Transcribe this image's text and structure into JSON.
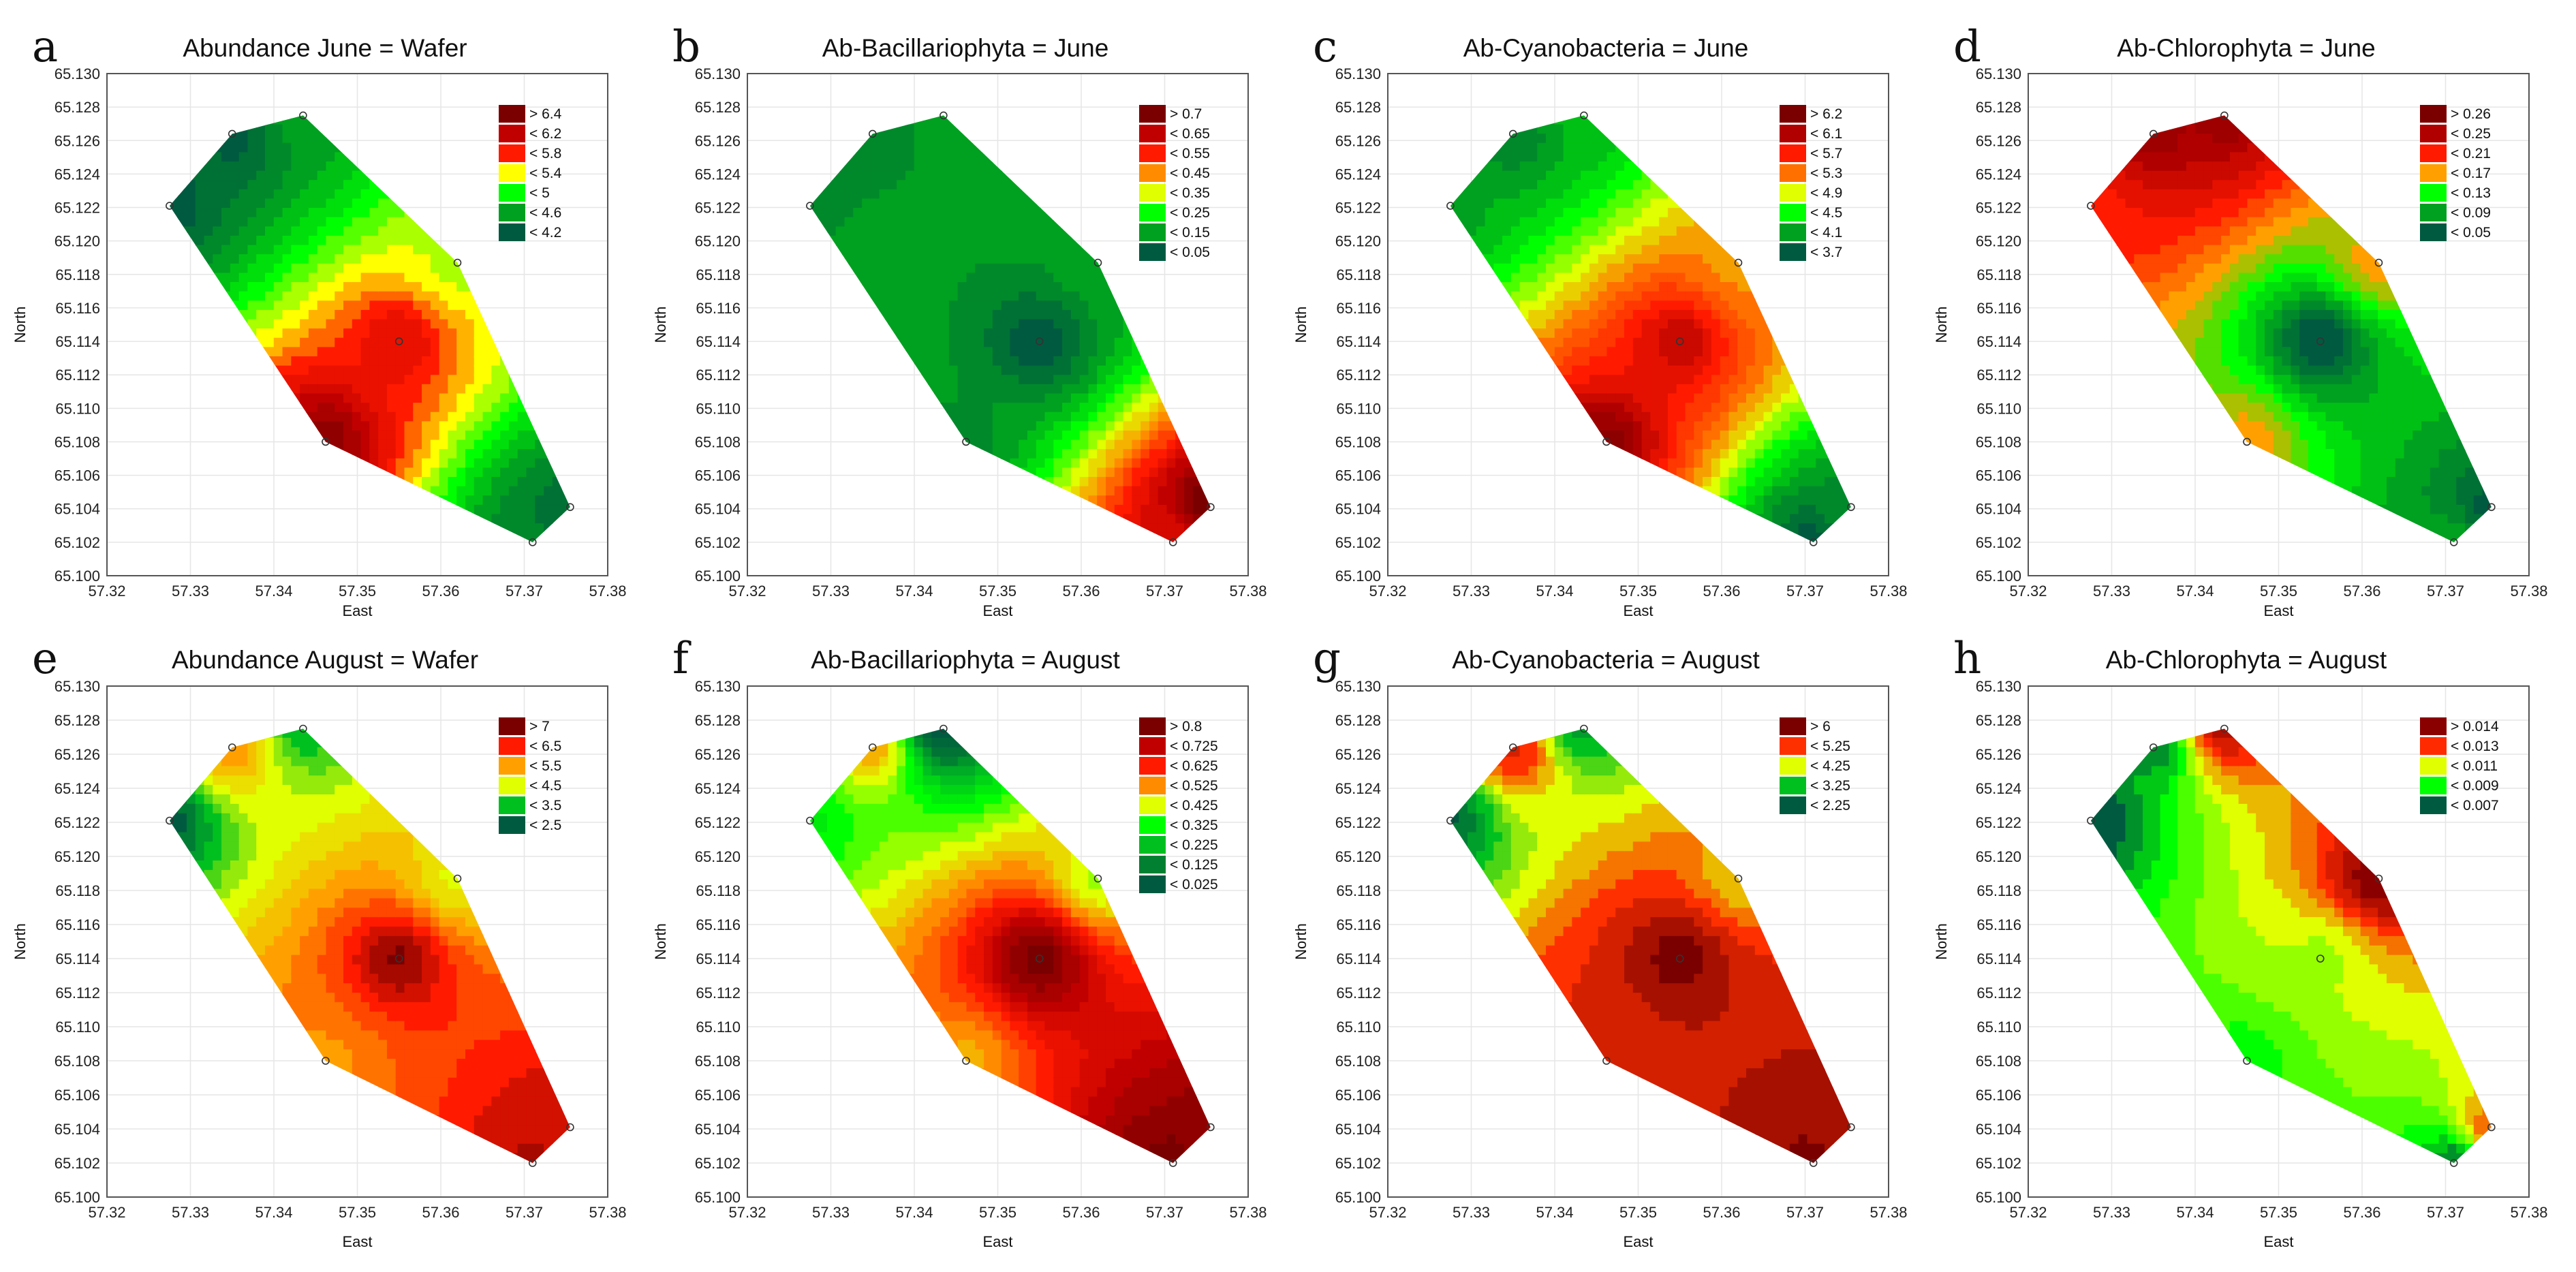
{
  "chart_data": {
    "type": "heatmap",
    "description_axes": {
      "xlabel": "East",
      "ylabel": "North"
    },
    "xlim": [
      57.32,
      57.38
    ],
    "ylim": [
      65.1,
      65.13
    ],
    "xticks": [
      "57.32",
      "57.33",
      "57.34",
      "57.35",
      "57.36",
      "57.37",
      "57.38"
    ],
    "yticks": [
      "65.100",
      "65.102",
      "65.104",
      "65.106",
      "65.108",
      "65.110",
      "65.112",
      "65.114",
      "65.116",
      "65.118",
      "65.120",
      "65.122",
      "65.124",
      "65.126",
      "65.128",
      "65.130"
    ],
    "stations": [
      {
        "east": 57.3275,
        "north": 65.1221
      },
      {
        "east": 57.335,
        "north": 65.1264
      },
      {
        "east": 57.3435,
        "north": 65.1275
      },
      {
        "east": 57.362,
        "north": 65.1187
      },
      {
        "east": 57.355,
        "north": 65.114
      },
      {
        "east": 57.3462,
        "north": 65.108
      },
      {
        "east": 57.371,
        "north": 65.102
      },
      {
        "east": 57.3755,
        "north": 65.1041
      }
    ],
    "hull_order": [
      0,
      1,
      2,
      3,
      7,
      6,
      5
    ],
    "panels": [
      {
        "letter": "a",
        "title": "Abundance June = Wafer",
        "xlabel": "East",
        "ylabel": "North",
        "legend": [
          {
            "label": "> 6.4",
            "color": "#7a0000",
            "v": 6.6
          },
          {
            "label": "< 6.2",
            "color": "#c00000",
            "v": 6.2
          },
          {
            "label": "< 5.8",
            "color": "#ff1a00",
            "v": 5.8
          },
          {
            "label": "< 5.4",
            "color": "#ffff00",
            "v": 5.4
          },
          {
            "label": "< 5",
            "color": "#00ff00",
            "v": 5.0
          },
          {
            "label": "< 4.6",
            "color": "#00a020",
            "v": 4.6
          },
          {
            "label": "< 4.2",
            "color": "#005a40",
            "v": 4.2
          }
        ],
        "values": [
          4.2,
          4.2,
          4.6,
          5.3,
          6.0,
          6.5,
          4.4,
          4.3
        ]
      },
      {
        "letter": "b",
        "title": "Ab-Bacillariophyta = June",
        "xlabel": "East",
        "ylabel": "North",
        "legend": [
          {
            "label": "> 0.7",
            "color": "#7a0000",
            "v": 0.75
          },
          {
            "label": "< 0.65",
            "color": "#c00000",
            "v": 0.65
          },
          {
            "label": "< 0.55",
            "color": "#ff1a00",
            "v": 0.55
          },
          {
            "label": "< 0.45",
            "color": "#ff8c00",
            "v": 0.45
          },
          {
            "label": "< 0.35",
            "color": "#e0ff00",
            "v": 0.35
          },
          {
            "label": "< 0.25",
            "color": "#00ff00",
            "v": 0.25
          },
          {
            "label": "< 0.15",
            "color": "#00a020",
            "v": 0.15
          },
          {
            "label": "< 0.05",
            "color": "#005a40",
            "v": 0.05
          }
        ],
        "values": [
          0.13,
          0.12,
          0.14,
          0.15,
          0.04,
          0.12,
          0.6,
          0.78
        ]
      },
      {
        "letter": "c",
        "title": "Ab-Cyanobacteria = June",
        "xlabel": "East",
        "ylabel": "North",
        "legend": [
          {
            "label": "> 6.2",
            "color": "#7a0000",
            "v": 6.4
          },
          {
            "label": "< 6.1",
            "color": "#b00000",
            "v": 6.1
          },
          {
            "label": "< 5.7",
            "color": "#ff1a00",
            "v": 5.7
          },
          {
            "label": "< 5.3",
            "color": "#ff7000",
            "v": 5.3
          },
          {
            "label": "< 4.9",
            "color": "#e0ff00",
            "v": 4.9
          },
          {
            "label": "< 4.5",
            "color": "#00ff00",
            "v": 4.5
          },
          {
            "label": "< 4.1",
            "color": "#00a020",
            "v": 4.1
          },
          {
            "label": "< 3.7",
            "color": "#005a40",
            "v": 3.7
          }
        ],
        "values": [
          4.1,
          3.9,
          4.2,
          5.2,
          6.0,
          6.3,
          3.7,
          4.0
        ]
      },
      {
        "letter": "d",
        "title": "Ab-Chlorophyta = June",
        "xlabel": "East",
        "ylabel": "North",
        "legend": [
          {
            "label": "> 0.26",
            "color": "#7a0000",
            "v": 0.27
          },
          {
            "label": "< 0.25",
            "color": "#b00000",
            "v": 0.25
          },
          {
            "label": "< 0.21",
            "color": "#ff1a00",
            "v": 0.21
          },
          {
            "label": "< 0.17",
            "color": "#ffa000",
            "v": 0.17
          },
          {
            "label": "< 0.13",
            "color": "#00ff00",
            "v": 0.13
          },
          {
            "label": "< 0.09",
            "color": "#00a020",
            "v": 0.09
          },
          {
            "label": "< 0.05",
            "color": "#005a40",
            "v": 0.05
          }
        ],
        "values": [
          0.21,
          0.26,
          0.26,
          0.17,
          0.04,
          0.17,
          0.09,
          0.05
        ]
      },
      {
        "letter": "e",
        "title": "Abundance August = Wafer",
        "xlabel": "East",
        "ylabel": "North",
        "legend": [
          {
            "label": "> 7",
            "color": "#7a0000",
            "v": 7.4
          },
          {
            "label": "< 6.5",
            "color": "#ff1a00",
            "v": 6.5
          },
          {
            "label": "< 5.5",
            "color": "#ffa000",
            "v": 5.5
          },
          {
            "label": "< 4.5",
            "color": "#e0ff00",
            "v": 4.5
          },
          {
            "label": "< 3.5",
            "color": "#00c020",
            "v": 3.5
          },
          {
            "label": "< 2.5",
            "color": "#005a40",
            "v": 2.5
          }
        ],
        "values": [
          2.5,
          5.6,
          3.4,
          4.6,
          7.3,
          5.6,
          7.0,
          6.9
        ]
      },
      {
        "letter": "f",
        "title": "Ab-Bacillariophyta = August",
        "xlabel": "East",
        "ylabel": "North",
        "legend": [
          {
            "label": "> 0.8",
            "color": "#7a0000",
            "v": 0.85
          },
          {
            "label": "< 0.725",
            "color": "#c00000",
            "v": 0.725
          },
          {
            "label": "< 0.625",
            "color": "#ff1a00",
            "v": 0.625
          },
          {
            "label": "< 0.525",
            "color": "#ff8c00",
            "v": 0.525
          },
          {
            "label": "< 0.425",
            "color": "#e0ff00",
            "v": 0.425
          },
          {
            "label": "< 0.325",
            "color": "#00ff00",
            "v": 0.325
          },
          {
            "label": "< 0.225",
            "color": "#00c020",
            "v": 0.225
          },
          {
            "label": "< 0.125",
            "color": "#008030",
            "v": 0.125
          },
          {
            "label": "< 0.025",
            "color": "#005a40",
            "v": 0.025
          }
        ],
        "values": [
          0.3,
          0.5,
          0.02,
          0.4,
          0.85,
          0.5,
          0.85,
          0.8
        ]
      },
      {
        "letter": "g",
        "title": "Ab-Cyanobacteria = August",
        "xlabel": "East",
        "ylabel": "North",
        "legend": [
          {
            "label": "> 6",
            "color": "#7a0000",
            "v": 6.6
          },
          {
            "label": "< 5.25",
            "color": "#ff3000",
            "v": 5.25
          },
          {
            "label": "< 4.25",
            "color": "#e0ff00",
            "v": 4.25
          },
          {
            "label": "< 3.25",
            "color": "#00c020",
            "v": 3.25
          },
          {
            "label": "< 2.25",
            "color": "#005a40",
            "v": 2.25
          }
        ],
        "values": [
          2.4,
          5.6,
          3.0,
          4.5,
          6.6,
          5.6,
          6.5,
          6.1
        ]
      },
      {
        "letter": "h",
        "title": "Ab-Chlorophyta = August",
        "xlabel": "East",
        "ylabel": "North",
        "legend": [
          {
            "label": "> 0.014",
            "color": "#8a0000",
            "v": 0.015
          },
          {
            "label": "< 0.013",
            "color": "#ff2a00",
            "v": 0.013
          },
          {
            "label": "< 0.011",
            "color": "#e0ff00",
            "v": 0.011
          },
          {
            "label": "< 0.009",
            "color": "#00ff00",
            "v": 0.009
          },
          {
            "label": "< 0.007",
            "color": "#005a40",
            "v": 0.007
          }
        ],
        "values": [
          0.0065,
          0.0075,
          0.0142,
          0.0152,
          0.0105,
          0.009,
          0.0075,
          0.0125
        ]
      }
    ]
  }
}
